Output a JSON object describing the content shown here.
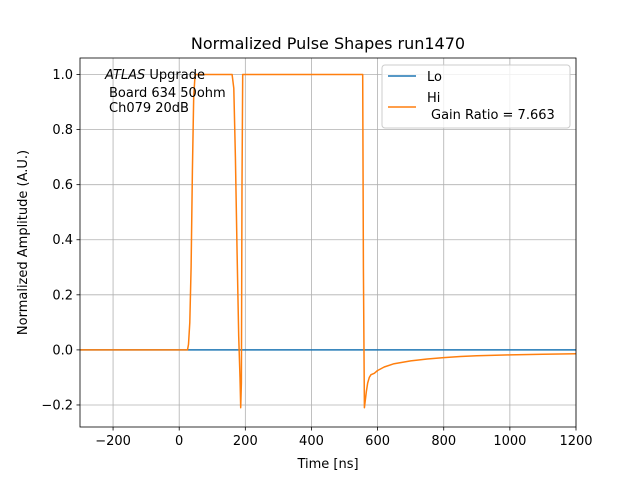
{
  "chart_data": {
    "type": "line",
    "title": "Normalized Pulse Shapes run1470",
    "xlabel": "Time [ns]",
    "ylabel": "Normalized Amplitude (A.U.)",
    "xlim": [
      -300,
      1200
    ],
    "ylim": [
      -0.28,
      1.06
    ],
    "xticks": [
      -200,
      0,
      200,
      400,
      600,
      800,
      1000,
      1200
    ],
    "xtick_labels": [
      "−200",
      "0",
      "200",
      "400",
      "600",
      "800",
      "1000",
      "1200"
    ],
    "yticks": [
      -0.2,
      0.0,
      0.2,
      0.4,
      0.6,
      0.8,
      1.0
    ],
    "ytick_labels": [
      "−0.2",
      "0.0",
      "0.2",
      "0.4",
      "0.6",
      "0.8",
      "1.0"
    ],
    "grid": true,
    "legend_position": "top-right",
    "annotation": {
      "italic": "ATLAS",
      "line1_rest": " Upgrade",
      "line2": "Board 634 50ohm",
      "line3": "Ch079 20dB"
    },
    "series": [
      {
        "name": "Lo",
        "color": "#1f77b4",
        "x": [
          -300,
          1200
        ],
        "y": [
          0.0,
          0.0
        ]
      },
      {
        "name": "Hi",
        "name_line2": "Gain Ratio = 7.663",
        "color": "#ff7f0e",
        "x": [
          -300,
          25,
          28,
          32,
          36,
          40,
          44,
          48,
          50,
          160,
          165,
          170,
          175,
          180,
          184,
          186,
          188,
          190,
          192,
          555,
          557,
          560,
          563,
          566,
          570,
          575,
          580,
          590,
          600,
          620,
          650,
          700,
          750,
          800,
          850,
          900,
          1000,
          1100,
          1200
        ],
        "y": [
          0.0,
          0.0,
          0.02,
          0.1,
          0.3,
          0.65,
          0.92,
          1.0,
          1.0,
          1.0,
          0.95,
          0.7,
          0.35,
          0.05,
          -0.1,
          -0.21,
          -0.12,
          0.6,
          1.0,
          1.0,
          0.3,
          -0.21,
          -0.18,
          -0.15,
          -0.12,
          -0.1,
          -0.09,
          -0.085,
          -0.075,
          -0.062,
          -0.05,
          -0.04,
          -0.033,
          -0.028,
          -0.024,
          -0.021,
          -0.018,
          -0.016,
          -0.014
        ]
      }
    ]
  }
}
